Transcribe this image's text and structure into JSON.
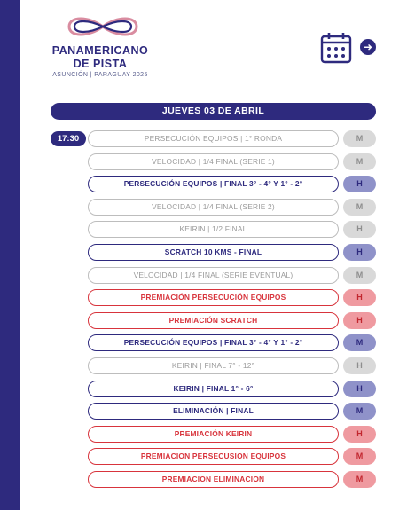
{
  "brand": {
    "line1": "PANAMERICANO",
    "line2": "DE PISTA",
    "subtitle": "ASUNCIÓN | PARAGUAY 2025"
  },
  "icons": {
    "calendar": "calendar-icon",
    "next": "arrow-right-icon"
  },
  "colors": {
    "primary": "#2e2a7e",
    "red": "#d8343c",
    "grey": "#bdbdbd"
  },
  "schedule": {
    "day_label": "JUEVES 03 DE ABRIL",
    "time": "17:30",
    "events": [
      {
        "name": "PERSECUCIÓN EQUIPOS | 1° RONDA",
        "tag": "M",
        "style": "grey"
      },
      {
        "name": "VELOCIDAD | 1/4 FINAL (SERIE 1)",
        "tag": "M",
        "style": "grey"
      },
      {
        "name": "PERSECUCIÓN EQUIPOS | FINAL 3° - 4° Y 1° - 2°",
        "tag": "H",
        "style": "blue"
      },
      {
        "name": "VELOCIDAD | 1/4 FINAL (SERIE 2)",
        "tag": "M",
        "style": "grey"
      },
      {
        "name": "KEIRIN | 1/2 FINAL",
        "tag": "H",
        "style": "grey"
      },
      {
        "name": "SCRATCH 10 KMS - FINAL",
        "tag": "H",
        "style": "blue"
      },
      {
        "name": "VELOCIDAD | 1/4 FINAL (SERIE EVENTUAL)",
        "tag": "M",
        "style": "grey"
      },
      {
        "name": "PREMIACIÓN PERSECUCIÓN EQUIPOS",
        "tag": "H",
        "style": "red"
      },
      {
        "name": "PREMIACIÓN SCRATCH",
        "tag": "H",
        "style": "red"
      },
      {
        "name": "PERSECUCIÓN EQUIPOS | FINAL 3° - 4° Y 1° - 2°",
        "tag": "M",
        "style": "blue"
      },
      {
        "name": "KEIRIN | FINAL 7° - 12°",
        "tag": "H",
        "style": "grey"
      },
      {
        "name": "KEIRIN | FINAL 1° - 6°",
        "tag": "H",
        "style": "blue"
      },
      {
        "name": "ELIMINACIÓN | FINAL",
        "tag": "M",
        "style": "blue"
      },
      {
        "name": "PREMIACIÓN KEIRIN",
        "tag": "H",
        "style": "red"
      },
      {
        "name": "PREMIACION PERSECUSION EQUIPOS",
        "tag": "M",
        "style": "red"
      },
      {
        "name": "PREMIACION ELIMINACION",
        "tag": "M",
        "style": "red"
      }
    ]
  }
}
